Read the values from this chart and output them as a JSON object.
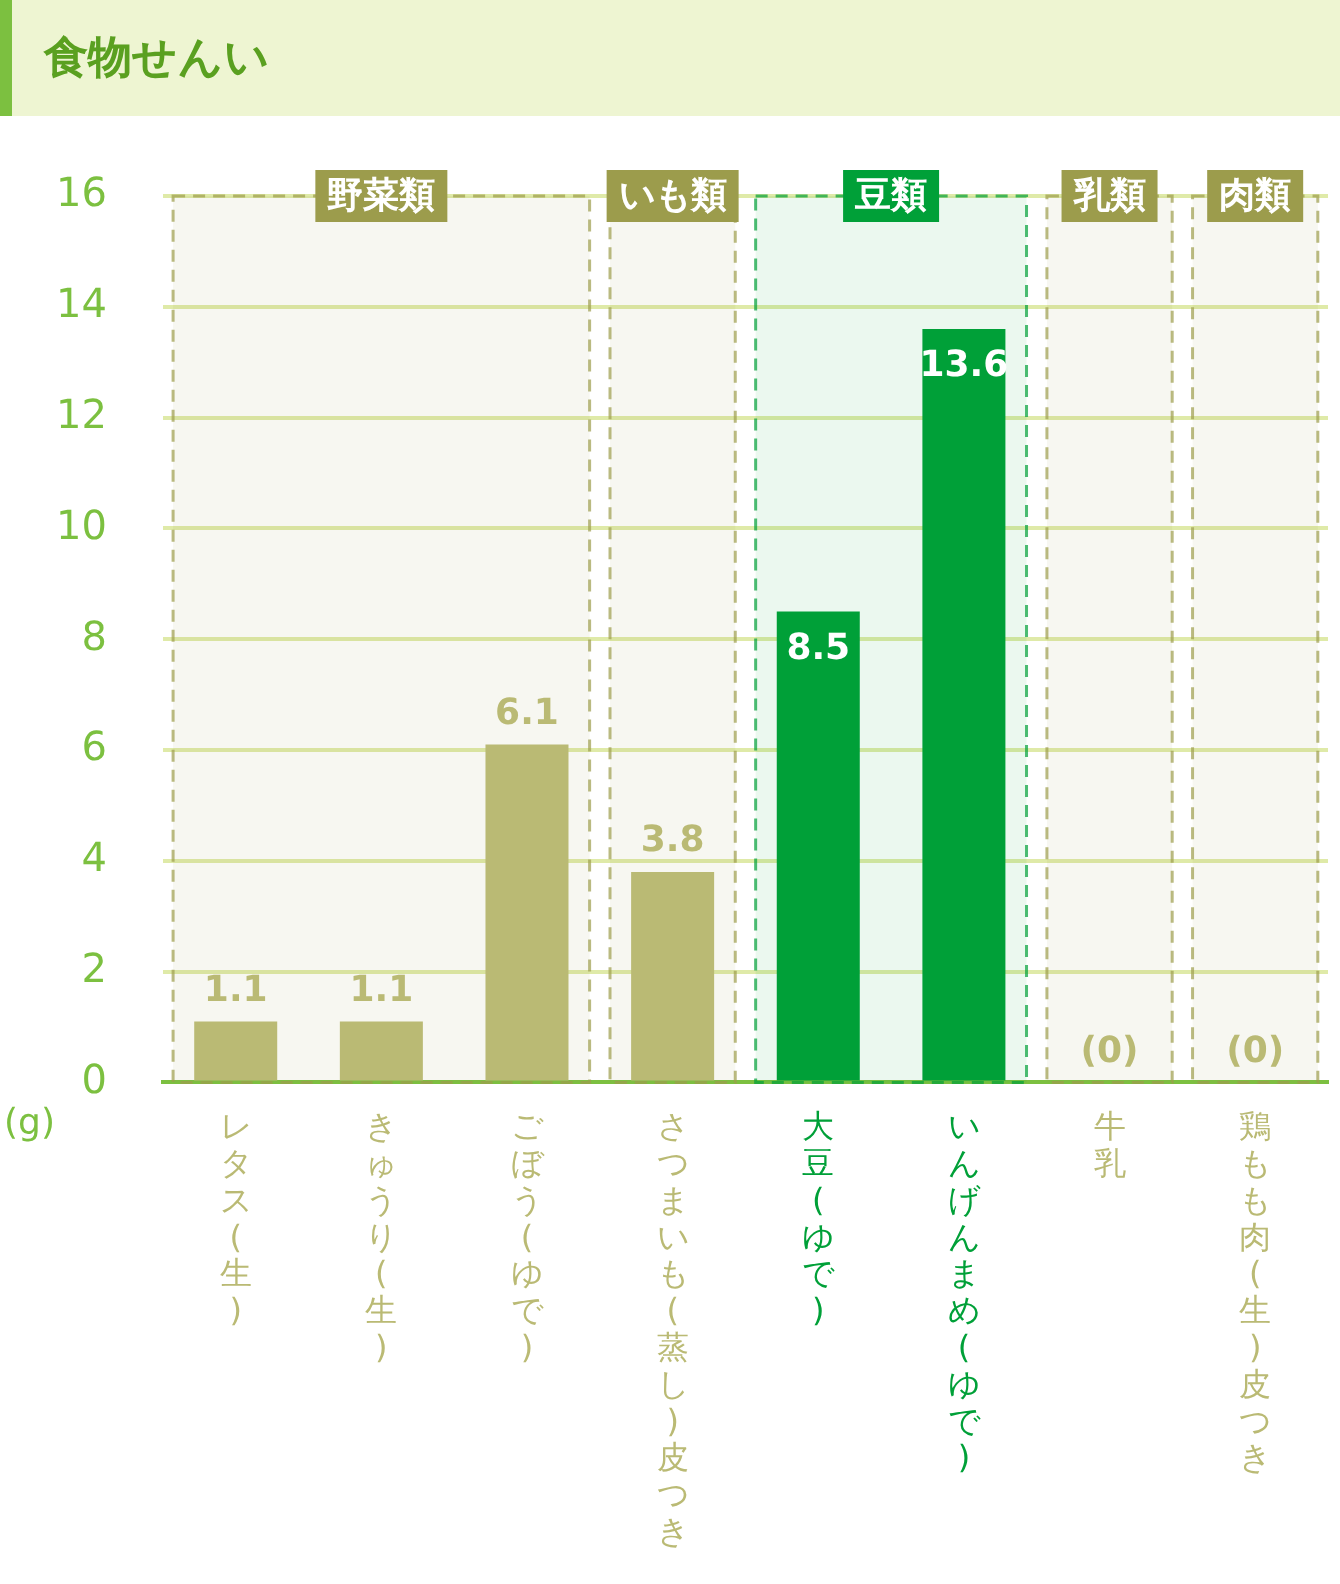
{
  "chart_data": {
    "type": "bar",
    "title": "食物せんい",
    "ylabel": "(g)",
    "categories": [
      "レタス(生)",
      "きゅうり(生)",
      "ごぼう(ゆで)",
      "さつまいも(蒸し)皮つき",
      "大豆(ゆで)",
      "いんげんまめ(ゆで)",
      "牛乳",
      "鶏もも肉(生)皮つき"
    ],
    "values": [
      1.1,
      1.1,
      6.1,
      3.8,
      8.5,
      13.6,
      0,
      0
    ],
    "colors": [
      "#baba74",
      "#baba74",
      "#baba74",
      "#baba74",
      "#00a038",
      "#00a038",
      "#baba74",
      "#baba74"
    ],
    "value_labels": [
      "1.1",
      "1.1",
      "6.1",
      "3.8",
      "8.5",
      "13.6",
      "(0)",
      "(0)"
    ],
    "ylim": [
      0,
      16
    ],
    "yticks": [
      0,
      2,
      4,
      6,
      8,
      10,
      12,
      14,
      16
    ],
    "grid": "y",
    "bands": [
      {
        "axis": "x",
        "from": "レタス(生)",
        "to": "ごぼう(ゆで)",
        "label": "野菜類",
        "color": "#9c9c4c"
      },
      {
        "axis": "x",
        "from": "さつまいも(蒸し)皮つき",
        "to": "さつまいも(蒸し)皮つき",
        "label": "いも類",
        "color": "#9c9c4c"
      },
      {
        "axis": "x",
        "from": "大豆(ゆで)",
        "to": "いんげんまめ(ゆで)",
        "label": "豆類",
        "color": "#00a038"
      },
      {
        "axis": "x",
        "from": "牛乳",
        "to": "牛乳",
        "label": "乳類",
        "color": "#9c9c4c"
      },
      {
        "axis": "x",
        "from": "鶏もも肉(生)皮つき",
        "to": "鶏もも肉(生)皮つき",
        "label": "肉類",
        "color": "#9c9c4c"
      }
    ]
  }
}
